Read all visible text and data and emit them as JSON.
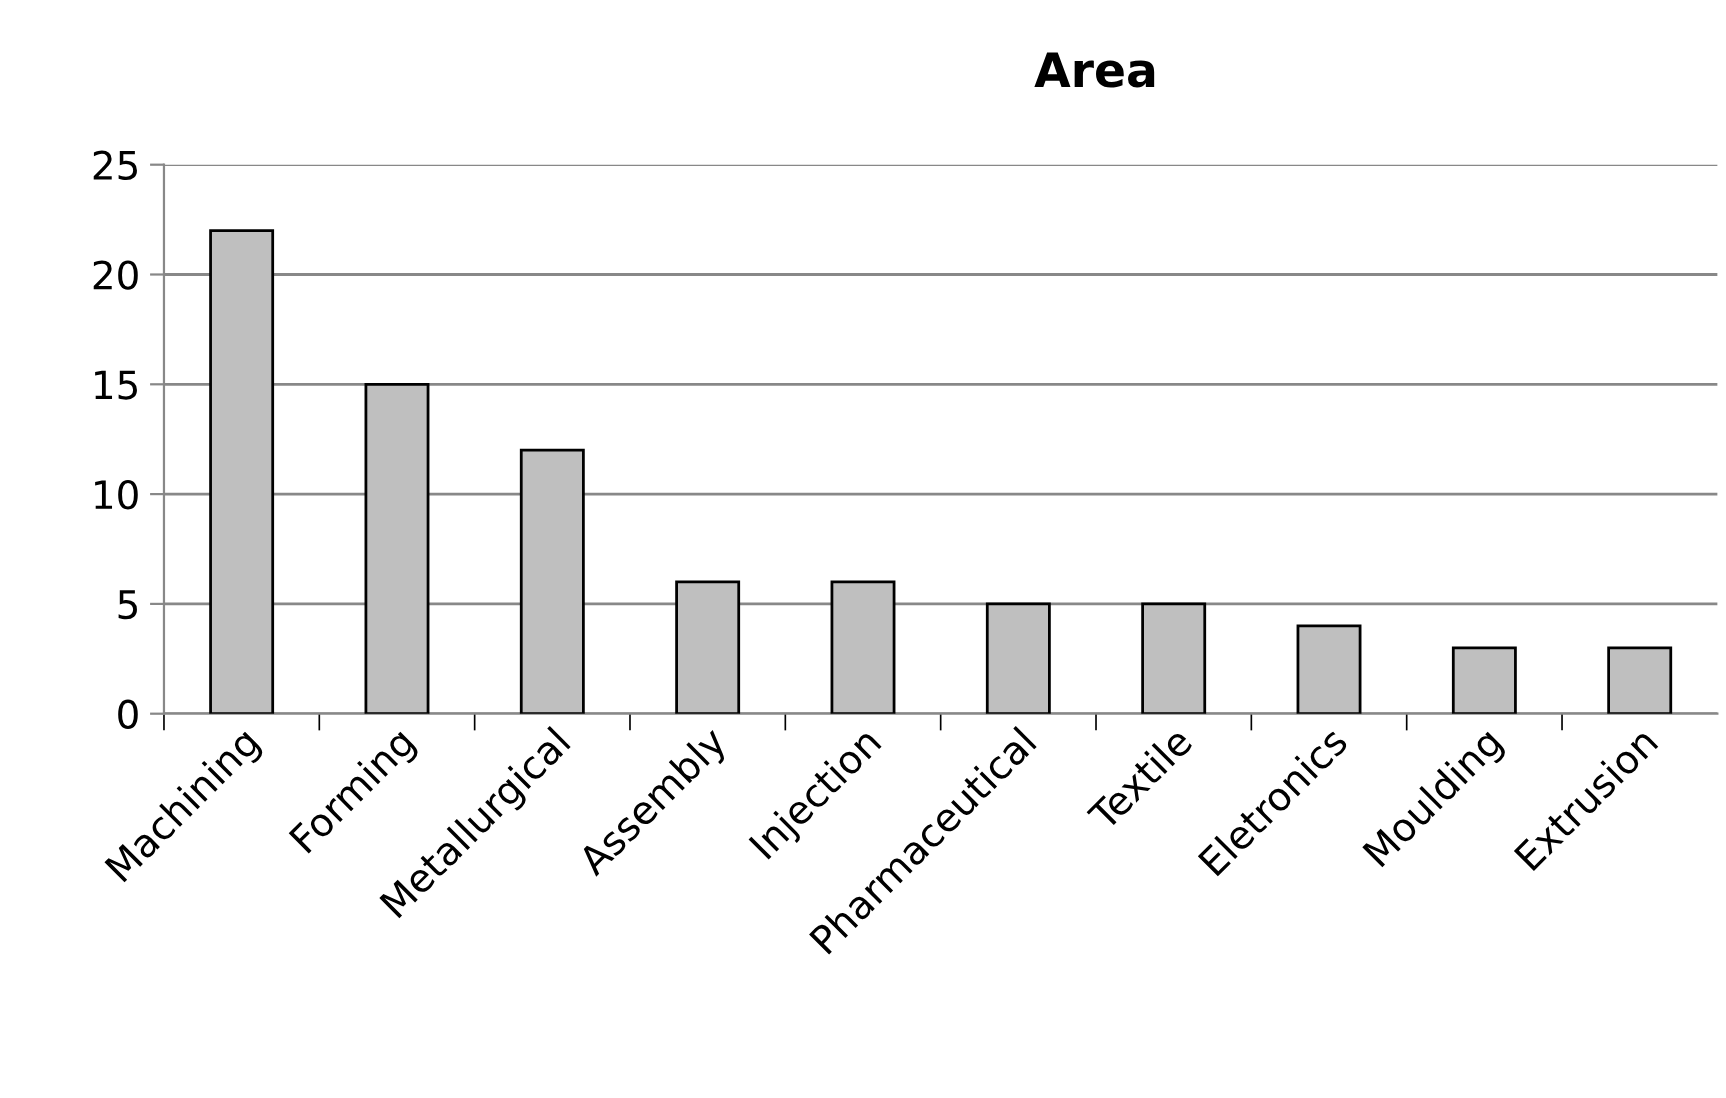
{
  "chart_data": {
    "type": "bar",
    "title": "Area",
    "categories": [
      "Machining",
      "Forming",
      "Metallurgical",
      "Assembly",
      "Injection",
      "Pharmaceutical",
      "Textile",
      "Eletronics",
      "Moulding",
      "Extrusion"
    ],
    "values": [
      22,
      15,
      12,
      6,
      6,
      5,
      5,
      4,
      3,
      3
    ],
    "color": "#bfbfbf",
    "ylim": [
      0,
      25
    ],
    "yticks": [
      0,
      5,
      10,
      15,
      20,
      25
    ],
    "grid": "y",
    "legend": false
  }
}
